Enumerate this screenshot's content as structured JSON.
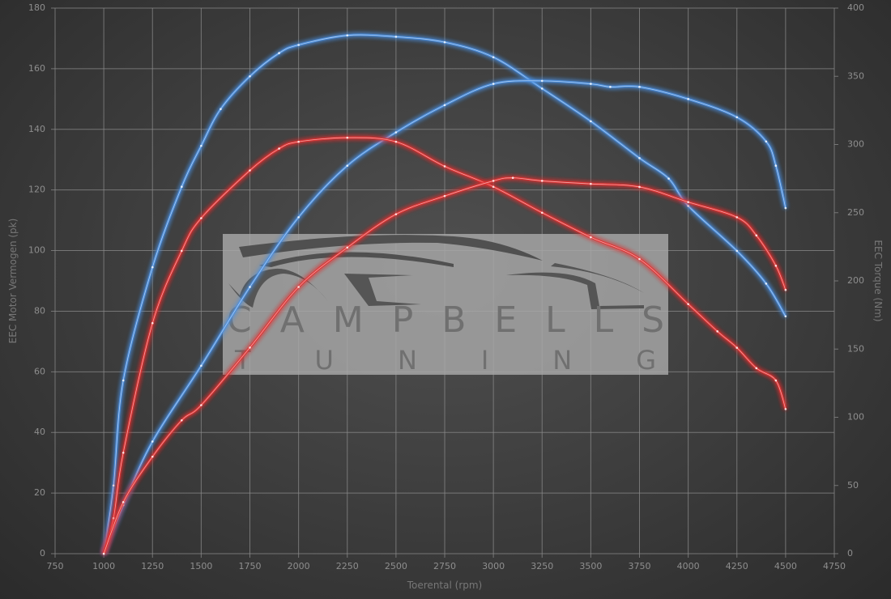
{
  "chart_data": {
    "type": "line",
    "title": "",
    "xlabel": "Toerental (rpm)",
    "ylabel_left": "EEC Motor Vermogen (pk)",
    "ylabel_right": "EEC Torque (Nm)",
    "xlim": [
      750,
      4750
    ],
    "ylim_left": [
      0,
      180
    ],
    "ylim_right": [
      0,
      400
    ],
    "x_ticks": [
      750,
      1000,
      1250,
      1500,
      1750,
      2000,
      2250,
      2500,
      2750,
      3000,
      3250,
      3500,
      3750,
      4000,
      4250,
      4500,
      4750
    ],
    "y_ticks_left": [
      0,
      20,
      40,
      60,
      80,
      100,
      120,
      140,
      160,
      180
    ],
    "y_ticks_right": [
      0,
      50,
      100,
      150,
      200,
      250,
      300,
      350,
      400
    ],
    "grid": true,
    "watermark": "CAMPBELLS TUNING",
    "colors": {
      "tuned": "#4a8fe0",
      "stock": "#e23232"
    },
    "series": [
      {
        "axis": "right",
        "color": "tuned",
        "x": [
          1000,
          1050,
          1100,
          1250,
          1400,
          1500,
          1600,
          1750,
          1900,
          2000,
          2250,
          2500,
          2750,
          3000,
          3250,
          3500,
          3750,
          3900,
          4000,
          4250,
          4400,
          4500
        ],
        "values": [
          0,
          50,
          127,
          210,
          269,
          299,
          326,
          350,
          367,
          373,
          380,
          379,
          375,
          364,
          341,
          317,
          290,
          275,
          255,
          222,
          198,
          174
        ]
      },
      {
        "axis": "left",
        "color": "tuned",
        "x": [
          1000,
          1100,
          1250,
          1500,
          1750,
          2000,
          2250,
          2500,
          2750,
          3000,
          3250,
          3500,
          3600,
          3750,
          4000,
          4250,
          4400,
          4450,
          4500
        ],
        "values": [
          0,
          16,
          37,
          62,
          88,
          111,
          128,
          139,
          148,
          155,
          156,
          155,
          154,
          154,
          150,
          144,
          136,
          128,
          114
        ]
      },
      {
        "axis": "right",
        "color": "stock",
        "x": [
          1000,
          1050,
          1100,
          1250,
          1400,
          1500,
          1750,
          1900,
          2000,
          2250,
          2500,
          2750,
          3000,
          3250,
          3500,
          3750,
          4000,
          4150,
          4250,
          4350,
          4450,
          4500
        ],
        "values": [
          0,
          26,
          74,
          169,
          222,
          246,
          281,
          297,
          302,
          305,
          302,
          284,
          269,
          250,
          232,
          216,
          183,
          163,
          151,
          136,
          127,
          106
        ]
      },
      {
        "axis": "left",
        "color": "stock",
        "x": [
          1000,
          1100,
          1250,
          1400,
          1500,
          1750,
          2000,
          2250,
          2500,
          2750,
          3000,
          3100,
          3250,
          3500,
          3750,
          4000,
          4250,
          4350,
          4450,
          4500
        ],
        "values": [
          0,
          17,
          32,
          44,
          49,
          68,
          88,
          101,
          112,
          118,
          123,
          124,
          123,
          122,
          121,
          116,
          111,
          105,
          95,
          87
        ]
      }
    ]
  }
}
